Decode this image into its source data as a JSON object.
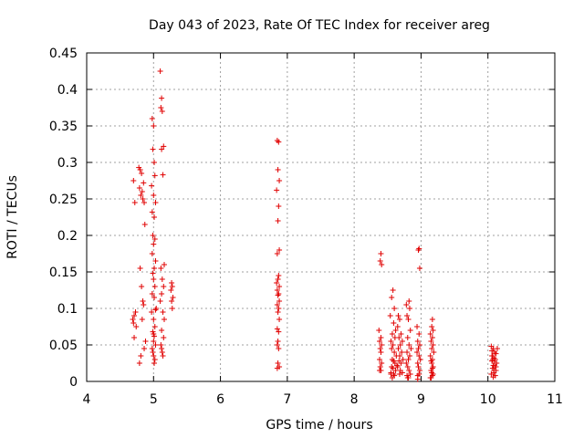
{
  "chart_data": {
    "type": "scatter",
    "title": "Day 043 of 2023, Rate Of TEC Index for receiver areg",
    "xlabel": "GPS time / hours",
    "ylabel": "ROTI / TECUs",
    "xlim": [
      4,
      11
    ],
    "ylim": [
      0,
      0.45
    ],
    "xticks": [
      "4",
      "5",
      "6",
      "7",
      "8",
      "9",
      "10",
      "11"
    ],
    "yticks": [
      "0",
      "0.05",
      "0.1",
      "0.15",
      "0.2",
      "0.25",
      "0.3",
      "0.35",
      "0.4",
      "0.45"
    ],
    "grid": true,
    "marker": "+",
    "marker_color": "#e00000",
    "series": [
      {
        "name": "ROTI",
        "x": [
          4.7,
          4.72,
          4.71,
          4.69,
          4.73,
          4.7,
          4.74,
          4.71,
          4.78,
          4.8,
          4.82,
          4.85,
          4.79,
          4.83,
          4.81,
          4.84,
          4.86,
          4.87,
          4.8,
          4.82,
          4.84,
          4.85,
          4.83,
          4.88,
          4.86,
          4.81,
          4.79,
          4.98,
          5.0,
          4.99,
          5.01,
          5.02,
          4.97,
          5.0,
          5.03,
          4.98,
          5.01,
          4.99,
          5.02,
          5.0,
          4.98,
          5.03,
          5.01,
          4.99,
          5.0,
          5.02,
          4.98,
          5.01,
          5.04,
          4.97,
          5.0,
          5.02,
          4.99,
          5.01,
          5.0,
          5.03,
          4.98,
          5.0,
          5.02,
          5.01,
          4.99,
          5.0,
          5.03,
          5.1,
          5.12,
          5.11,
          5.13,
          5.15,
          5.12,
          5.14,
          5.16,
          5.11,
          5.13,
          5.15,
          5.12,
          5.1,
          5.14,
          5.16,
          5.12,
          5.15,
          5.11,
          5.13,
          5.14,
          5.12,
          5.27,
          5.28,
          5.26,
          5.29,
          5.27,
          5.28,
          6.85,
          6.87,
          6.86,
          6.88,
          6.84,
          6.87,
          6.86,
          6.88,
          6.85,
          6.87,
          6.86,
          6.84,
          6.88,
          6.85,
          6.87,
          6.86,
          6.88,
          6.85,
          6.87,
          6.86,
          6.88,
          6.85,
          6.87,
          6.86,
          6.85,
          6.87,
          6.86,
          6.88,
          6.85,
          8.38,
          8.4,
          8.39,
          8.41,
          8.37,
          8.4,
          8.38,
          8.41,
          8.39,
          8.4,
          8.38,
          8.41,
          8.39,
          8.4,
          8.55,
          8.58,
          8.56,
          8.6,
          8.54,
          8.59,
          8.62,
          8.57,
          8.61,
          8.55,
          8.58,
          8.56,
          8.6,
          8.63,
          8.57,
          8.59,
          8.61,
          8.56,
          8.58,
          8.62,
          8.55,
          8.59,
          8.6,
          8.57,
          8.64,
          8.66,
          8.68,
          8.65,
          8.7,
          8.67,
          8.72,
          8.69,
          8.66,
          8.71,
          8.68,
          8.73,
          8.67,
          8.7,
          8.65,
          8.69,
          8.72,
          8.68,
          8.8,
          8.82,
          8.78,
          8.83,
          8.79,
          8.81,
          8.84,
          8.8,
          8.82,
          8.85,
          8.79,
          8.83,
          8.81,
          8.78,
          8.8,
          8.82,
          8.84,
          8.79,
          8.81,
          8.95,
          8.97,
          8.96,
          8.98,
          8.94,
          8.97,
          8.95,
          8.98,
          8.96,
          8.94,
          8.97,
          8.99,
          8.95,
          8.96,
          8.98,
          8.97,
          8.95,
          9.15,
          9.17,
          9.16,
          9.18,
          9.14,
          9.17,
          9.15,
          9.18,
          9.16,
          9.19,
          9.14,
          9.17,
          9.15,
          9.16,
          9.18,
          9.17,
          9.15,
          9.16,
          9.18,
          9.17,
          9.14,
          10.05,
          10.08,
          10.06,
          10.1,
          10.12,
          10.07,
          10.09,
          10.11,
          10.06,
          10.13,
          10.08,
          10.1,
          10.07,
          10.12,
          10.09,
          10.05,
          10.11,
          10.08,
          10.14,
          10.06,
          10.1,
          10.09,
          10.07,
          10.12
        ],
        "y": [
          0.275,
          0.245,
          0.09,
          0.085,
          0.095,
          0.08,
          0.075,
          0.06,
          0.293,
          0.29,
          0.285,
          0.272,
          0.265,
          0.26,
          0.255,
          0.25,
          0.245,
          0.215,
          0.155,
          0.13,
          0.11,
          0.105,
          0.085,
          0.055,
          0.045,
          0.035,
          0.025,
          0.36,
          0.35,
          0.318,
          0.3,
          0.282,
          0.268,
          0.255,
          0.245,
          0.232,
          0.225,
          0.2,
          0.195,
          0.188,
          0.175,
          0.165,
          0.155,
          0.148,
          0.14,
          0.13,
          0.12,
          0.115,
          0.1,
          0.095,
          0.085,
          0.075,
          0.068,
          0.062,
          0.055,
          0.05,
          0.045,
          0.035,
          0.03,
          0.025,
          0.04,
          0.065,
          0.098,
          0.425,
          0.388,
          0.375,
          0.37,
          0.322,
          0.318,
          0.283,
          0.16,
          0.155,
          0.14,
          0.13,
          0.12,
          0.11,
          0.095,
          0.085,
          0.07,
          0.06,
          0.05,
          0.04,
          0.035,
          0.045,
          0.135,
          0.13,
          0.125,
          0.115,
          0.11,
          0.1,
          0.33,
          0.328,
          0.29,
          0.275,
          0.262,
          0.24,
          0.22,
          0.18,
          0.175,
          0.145,
          0.14,
          0.135,
          0.13,
          0.125,
          0.12,
          0.118,
          0.11,
          0.105,
          0.1,
          0.095,
          0.085,
          0.072,
          0.068,
          0.055,
          0.05,
          0.045,
          0.025,
          0.02,
          0.018,
          0.015,
          0.175,
          0.165,
          0.16,
          0.07,
          0.06,
          0.055,
          0.05,
          0.045,
          0.04,
          0.03,
          0.025,
          0.02,
          0.015,
          0.01,
          0.125,
          0.115,
          0.1,
          0.09,
          0.08,
          0.07,
          0.065,
          0.06,
          0.055,
          0.05,
          0.045,
          0.04,
          0.035,
          0.03,
          0.028,
          0.025,
          0.02,
          0.018,
          0.015,
          0.012,
          0.01,
          0.008,
          0.005,
          0.022,
          0.09,
          0.085,
          0.075,
          0.065,
          0.06,
          0.055,
          0.05,
          0.045,
          0.04,
          0.035,
          0.03,
          0.028,
          0.025,
          0.02,
          0.015,
          0.012,
          0.01,
          0.005,
          0.11,
          0.105,
          0.1,
          0.09,
          0.085,
          0.07,
          0.06,
          0.05,
          0.045,
          0.04,
          0.035,
          0.03,
          0.025,
          0.02,
          0.015,
          0.01,
          0.008,
          0.005,
          0.003,
          0.182,
          0.18,
          0.155,
          0.075,
          0.065,
          0.055,
          0.05,
          0.045,
          0.04,
          0.035,
          0.03,
          0.025,
          0.02,
          0.015,
          0.01,
          0.008,
          0.005,
          0.085,
          0.075,
          0.07,
          0.065,
          0.06,
          0.055,
          0.05,
          0.045,
          0.04,
          0.035,
          0.03,
          0.028,
          0.025,
          0.02,
          0.018,
          0.015,
          0.012,
          0.01,
          0.008,
          0.005,
          0.048,
          0.045,
          0.042,
          0.04,
          0.038,
          0.035,
          0.032,
          0.03,
          0.028,
          0.025,
          0.022,
          0.02,
          0.018,
          0.015,
          0.012,
          0.01,
          0.008,
          0.006,
          0.045,
          0.035,
          0.025,
          0.015,
          0.03,
          0.02
        ]
      }
    ]
  }
}
